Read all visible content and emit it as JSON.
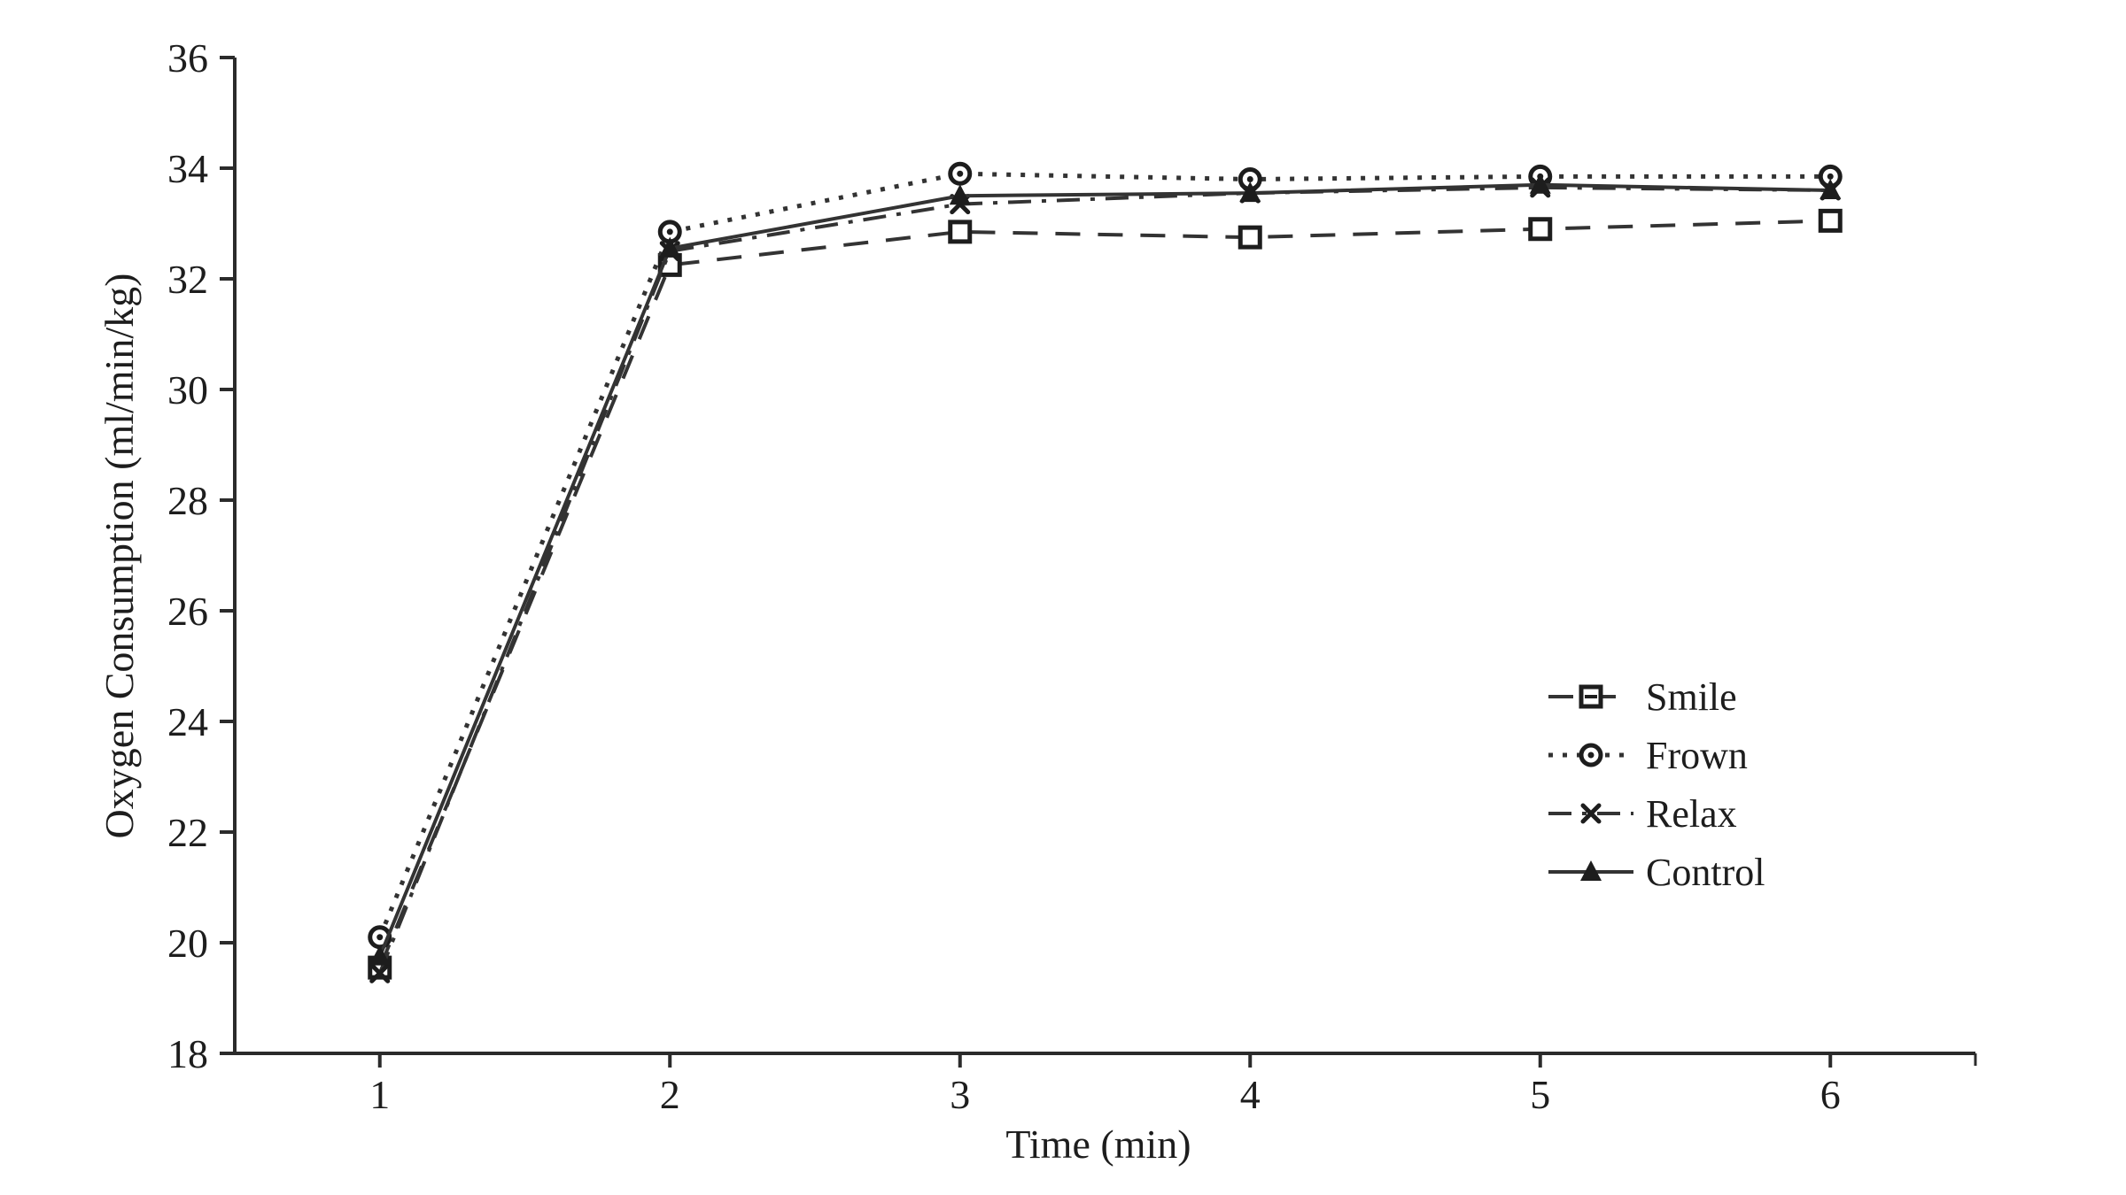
{
  "chart_data": {
    "type": "line",
    "title": "",
    "xlabel": "Time (min)",
    "ylabel": "Oxygen Consumption (ml/min/kg)",
    "x": [
      1,
      2,
      3,
      4,
      5,
      6
    ],
    "xlim": [
      0.5,
      6.5
    ],
    "ylim": [
      18,
      36
    ],
    "xticks": [
      "1",
      "2",
      "3",
      "4",
      "5",
      "6"
    ],
    "yticks": [
      "18",
      "20",
      "22",
      "24",
      "26",
      "28",
      "30",
      "32",
      "34",
      "36"
    ],
    "ytick_values": [
      18,
      20,
      22,
      24,
      26,
      28,
      30,
      32,
      34,
      36
    ],
    "grid": false,
    "legend_position": "inside-right",
    "ink_color": "#1d1d1d",
    "axis_color": "#2b2b2b",
    "series": [
      {
        "name": "Smile",
        "line": "dashed",
        "marker": "open-square",
        "values": [
          19.55,
          32.25,
          32.85,
          32.75,
          32.9,
          33.05
        ]
      },
      {
        "name": "Frown",
        "line": "dotted",
        "marker": "open-circle-dot",
        "values": [
          20.1,
          32.85,
          33.9,
          33.8,
          33.85,
          33.85
        ]
      },
      {
        "name": "Relax",
        "line": "dashdot",
        "marker": "x",
        "values": [
          19.45,
          32.5,
          33.35,
          33.55,
          33.65,
          33.6
        ]
      },
      {
        "name": "Control",
        "line": "solid",
        "marker": "filled-triangle",
        "values": [
          19.75,
          32.55,
          33.5,
          33.55,
          33.7,
          33.6
        ]
      }
    ]
  }
}
